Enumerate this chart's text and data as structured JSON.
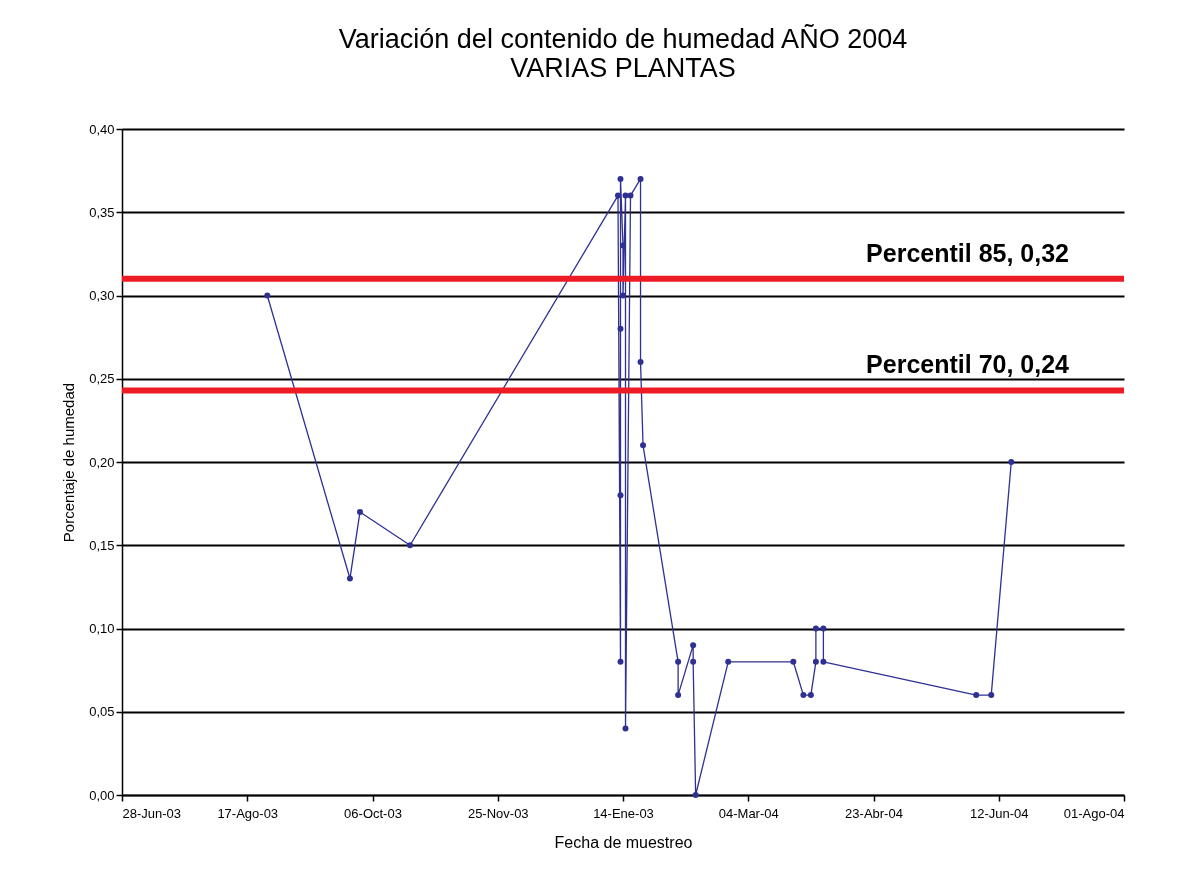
{
  "chart_data": {
    "type": "line",
    "title": "Variación del contenido de humedad  AÑO 2004",
    "subtitle": "VARIAS PLANTAS",
    "xlabel": "Fecha de muestreo",
    "ylabel": "Porcentaje de humedad",
    "x": [
      "2003-08-25",
      "2003-09-27",
      "2003-10-01",
      "2003-10-21",
      "2004-01-12",
      "2004-01-13",
      "2004-01-13",
      "2004-01-13",
      "2004-01-13",
      "2004-01-14",
      "2004-01-14",
      "2004-01-15",
      "2004-01-15",
      "2004-01-17",
      "2004-01-21",
      "2004-01-21",
      "2004-01-22",
      "2004-02-05",
      "2004-02-05",
      "2004-02-11",
      "2004-02-11",
      "2004-02-12",
      "2004-02-25",
      "2004-03-22",
      "2004-03-26",
      "2004-03-29",
      "2004-03-31",
      "2004-03-31",
      "2004-04-03",
      "2004-04-03",
      "2004-06-03",
      "2004-06-09",
      "2004-06-17"
    ],
    "series": [
      {
        "color": "#2e3192",
        "values": [
          0.3,
          0.13,
          0.17,
          0.15,
          0.36,
          0.08,
          0.28,
          0.18,
          0.37,
          0.33,
          0.3,
          0.36,
          0.04,
          0.36,
          0.37,
          0.26,
          0.21,
          0.08,
          0.06,
          0.09,
          0.08,
          0.0,
          0.08,
          0.08,
          0.06,
          0.06,
          0.08,
          0.1,
          0.1,
          0.08,
          0.06,
          0.06,
          0.2
        ]
      }
    ],
    "marker": "circle",
    "line_style": "solid",
    "grid": "y",
    "legend": false,
    "xlim": [
      "2003-06-28",
      "2004-08-01"
    ],
    "xticks": [
      {
        "value": "2003-06-28",
        "label": "28-Jun-03"
      },
      {
        "value": "2003-08-17",
        "label": "17-Ago-03"
      },
      {
        "value": "2003-10-06",
        "label": "06-Oct-03"
      },
      {
        "value": "2003-11-25",
        "label": "25-Nov-03"
      },
      {
        "value": "2004-01-14",
        "label": "14-Ene-03"
      },
      {
        "value": "2004-03-04",
        "label": "04-Mar-04"
      },
      {
        "value": "2004-04-23",
        "label": "23-Abr-04"
      },
      {
        "value": "2004-06-12",
        "label": "12-Jun-04"
      },
      {
        "value": "2004-08-01",
        "label": "01-Ago-04"
      }
    ],
    "ylim": [
      0,
      0.4
    ],
    "yticks": [
      {
        "value": 0,
        "label": "0,00"
      },
      {
        "value": 0.05,
        "label": "0,05"
      },
      {
        "value": 0.1,
        "label": "0,10"
      },
      {
        "value": 0.15,
        "label": "0,15"
      },
      {
        "value": 0.2,
        "label": "0,20"
      },
      {
        "value": 0.25,
        "label": "0,25"
      },
      {
        "value": 0.3,
        "label": "0,30"
      },
      {
        "value": 0.35,
        "label": "0,35"
      },
      {
        "value": 0.4,
        "label": "0,40"
      }
    ],
    "ref_lines": [
      {
        "axis": "y",
        "value": 0.31,
        "label": "Percentil 85, 0,32",
        "color": "#ed1c24"
      },
      {
        "axis": "y",
        "value": 0.243,
        "label": "Percentil 70, 0,24",
        "color": "#ed1c24"
      }
    ]
  }
}
